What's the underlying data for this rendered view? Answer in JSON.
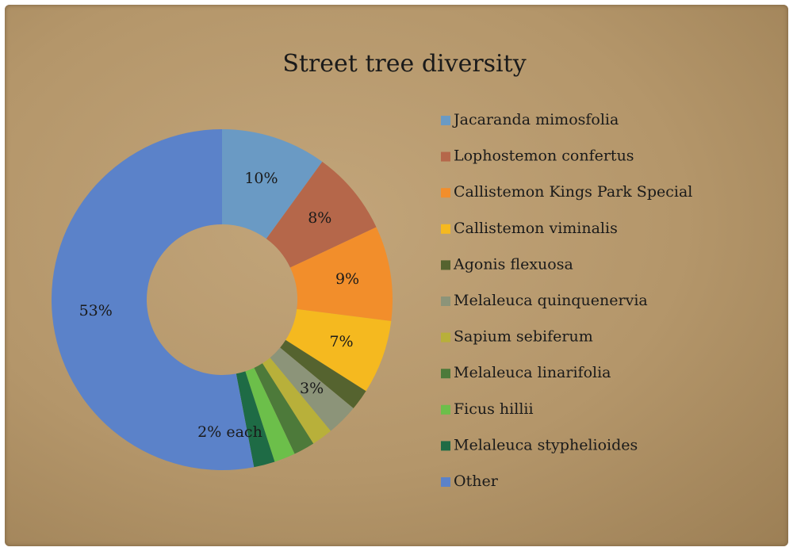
{
  "chart_data": {
    "type": "donut",
    "title": "Street tree diversity",
    "categories": [
      "Jacaranda mimosfolia",
      "Lophostemon confertus",
      "Callistemon Kings Park Special",
      "Callistemon viminalis",
      "Agonis flexuosa",
      "Melaleuca quinquenervia",
      "Sapium sebiferum",
      "Melaleuca linarifolia",
      "Ficus hillii",
      "Melaleuca styphelioides",
      "Other"
    ],
    "values": [
      10,
      8,
      9,
      7,
      2,
      3,
      2,
      2,
      2,
      2,
      53
    ],
    "value_labels": [
      "10%",
      "8%",
      "9%",
      "7%",
      null,
      "3%",
      null,
      null,
      null,
      null,
      "53%"
    ],
    "colors": [
      "#6a9ac4",
      "#b5674a",
      "#f28e2b",
      "#f5b91f",
      "#55632f",
      "#8c9479",
      "#b8b03a",
      "#4d7a3a",
      "#6cbf4a",
      "#1e6b45",
      "#5b82c9"
    ],
    "annotation": "2% each",
    "legend": "right"
  }
}
